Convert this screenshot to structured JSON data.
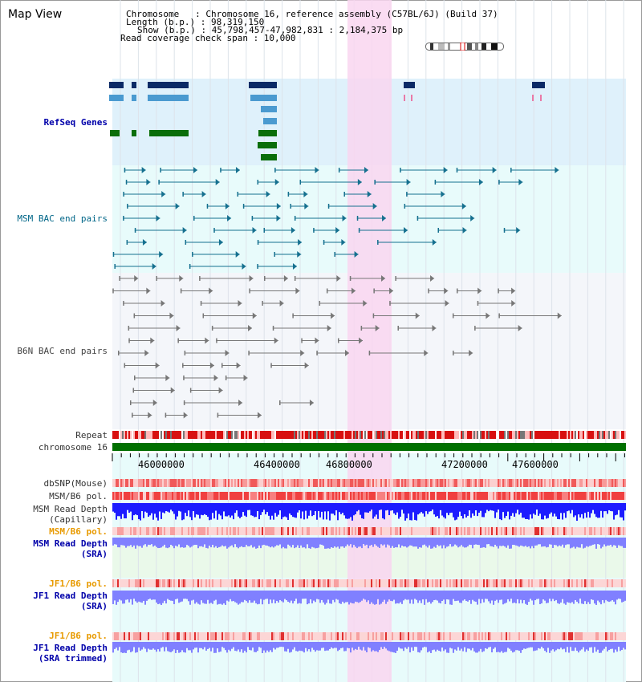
{
  "title": "Map View",
  "info": {
    "chromosome_line": "Chromosome   : Chromosome 16, reference assembly (C57BL/6J) (Build 37)",
    "length_line": "Length (b.p.) : 98,319,150",
    "show_line": "Show (b.p.) : 45,798,457-47,982,831 : 2,184,375 bp",
    "span_line": "Read coverage check span : 10,000"
  },
  "tracks": {
    "refseq": "RefSeq Genes",
    "msm_bac": "MSM BAC end pairs",
    "b6n_bac": "B6N BAC end pairs",
    "repeat": "Repeat",
    "chromosome": "chromosome 16",
    "dbsnp": "dbSNP(Mouse)",
    "msm_b6_pol_1": "MSM/B6 pol.",
    "msm_depth_cap_1": "MSM Read Depth",
    "msm_depth_cap_2": "(Capillary)",
    "msm_b6_pol_2": "MSM/B6 pol.",
    "msm_depth_sra_1": "MSM Read Depth",
    "msm_depth_sra_2": "(SRA)",
    "jf1_b6_pol_1": "JF1/B6 pol.",
    "jf1_depth_sra_1": "JF1 Read Depth",
    "jf1_depth_sra_2": "(SRA)",
    "jf1_b6_pol_2": "JF1/B6 pol.",
    "jf1_depth_trim_1": "JF1 Read Depth",
    "jf1_depth_trim_2": "(SRA trimmed)"
  },
  "axis": {
    "ticks": [
      "46000000",
      "46400000",
      "46800000",
      "47200000",
      "47600000"
    ]
  },
  "colors": {
    "refseq_dark": "#0a2a66",
    "refseq_light": "#4a9ad0",
    "refseq_green": "#0a6e0a",
    "bac_teal": "#15708f",
    "bac_gray": "#777777",
    "highlight": "#f9d6f0",
    "chromosome_bar": "#007000",
    "depth_blue": "#1c1cff",
    "depth_light": "#8080ff"
  }
}
